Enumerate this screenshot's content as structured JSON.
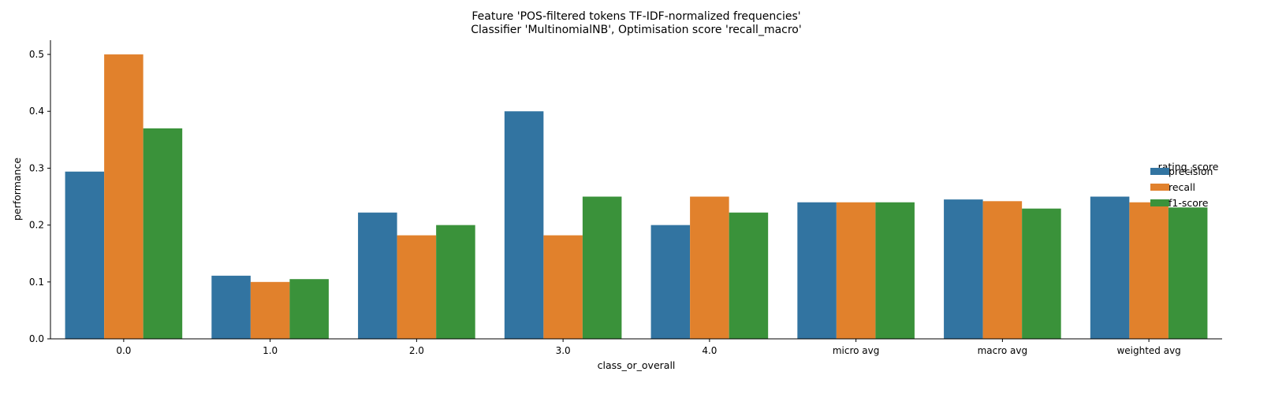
{
  "chart_data": {
    "type": "bar",
    "title_lines": [
      "Feature 'POS-filtered tokens TF-IDF-normalized frequencies'",
      "Classifier 'MultinomialNB', Optimisation score 'recall_macro'"
    ],
    "xlabel": "class_or_overall",
    "ylabel": "performance",
    "ylim": [
      0,
      0.525
    ],
    "yticks": [
      "0.0",
      "0.1",
      "0.2",
      "0.3",
      "0.4",
      "0.5"
    ],
    "categories": [
      "0.0",
      "1.0",
      "2.0",
      "3.0",
      "4.0",
      "micro avg",
      "macro avg",
      "weighted avg"
    ],
    "legend_title": "rating_score",
    "legend_position": "right",
    "grid": false,
    "series": [
      {
        "name": "precision",
        "color": "#3274a1",
        "values": [
          0.294,
          0.111,
          0.222,
          0.4,
          0.2,
          0.24,
          0.245,
          0.25
        ]
      },
      {
        "name": "recall",
        "color": "#e1812c",
        "values": [
          0.5,
          0.1,
          0.182,
          0.182,
          0.25,
          0.24,
          0.242,
          0.24
        ]
      },
      {
        "name": "f1-score",
        "color": "#3a923a",
        "values": [
          0.37,
          0.105,
          0.2,
          0.25,
          0.222,
          0.24,
          0.229,
          0.231
        ]
      }
    ]
  }
}
